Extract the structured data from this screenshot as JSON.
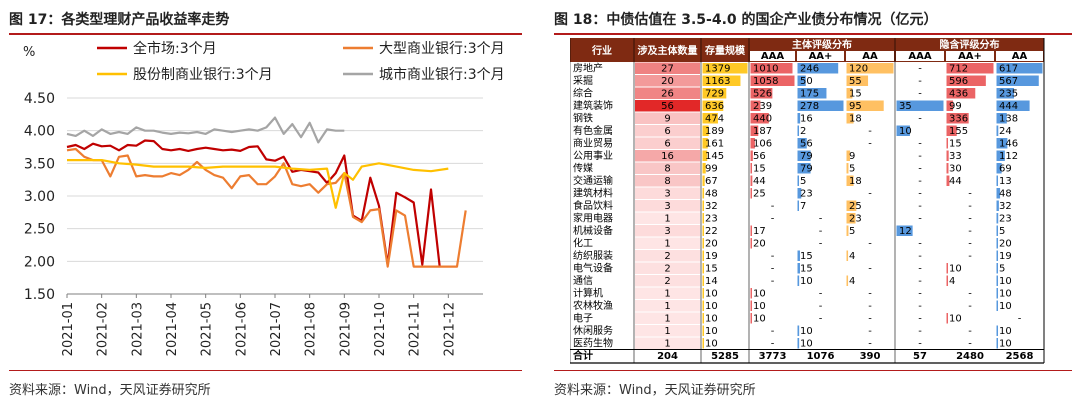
{
  "left": {
    "title": "图 17：各类型理财产品收益率走势",
    "source": "资料来源：Wind，天风证券研究所"
  },
  "right": {
    "title": "图 18：中债估值在 3.5-4.0 的国企产业债分布情况（亿元）",
    "source": "资料来源：Wind，天风证券研究所"
  },
  "chart_data": [
    {
      "type": "line",
      "title": "各类型理财产品收益率走势",
      "ylabel": "%",
      "ylim": [
        1.5,
        4.5
      ],
      "yticks": [
        "1.50",
        "2.00",
        "2.50",
        "3.00",
        "3.50",
        "4.00",
        "4.50"
      ],
      "xticks": [
        "2021-01",
        "2021-02",
        "2021-03",
        "2021-04",
        "2021-05",
        "2021-06",
        "2021-07",
        "2021-08",
        "2021-09",
        "2021-10",
        "2021-11",
        "2021-12"
      ],
      "grid": true,
      "legend_position": "top",
      "series": [
        {
          "name": "全市场:3个月",
          "color": "#c00000",
          "x": [
            0,
            0.25,
            0.5,
            0.75,
            1,
            1.25,
            1.5,
            1.75,
            2,
            2.25,
            2.5,
            2.75,
            3,
            3.25,
            3.5,
            3.75,
            4,
            4.25,
            4.5,
            4.75,
            5,
            5.25,
            5.5,
            5.75,
            6,
            6.25,
            6.5,
            6.75,
            7,
            7.25,
            7.5,
            7.75,
            8,
            8.25,
            8.5,
            8.75,
            9,
            9.25,
            9.5,
            9.75,
            10,
            10.25,
            10.5,
            10.75,
            11,
            11.25,
            11.5
          ],
          "y": [
            3.75,
            3.78,
            3.72,
            3.8,
            3.76,
            3.77,
            3.7,
            3.78,
            3.77,
            3.85,
            3.84,
            3.72,
            3.7,
            3.72,
            3.69,
            3.72,
            3.74,
            3.72,
            3.7,
            3.71,
            3.69,
            3.75,
            3.76,
            3.56,
            3.54,
            3.6,
            3.37,
            3.4,
            3.38,
            3.36,
            3.2,
            3.35,
            3.62,
            2.7,
            2.62,
            3.28,
            2.85,
            1.95,
            3.05,
            2.98,
            2.9,
            1.95,
            3.1,
            1.92,
            null,
            null,
            null
          ]
        },
        {
          "name": "大型商业银行:3个月",
          "color": "#ed7d31",
          "x": [
            0,
            0.25,
            0.5,
            0.75,
            1,
            1.25,
            1.5,
            1.75,
            2,
            2.25,
            2.5,
            2.75,
            3,
            3.25,
            3.5,
            3.75,
            4,
            4.25,
            4.5,
            4.75,
            5,
            5.25,
            5.5,
            5.75,
            6,
            6.25,
            6.5,
            6.75,
            7,
            7.25,
            7.5,
            7.75,
            8,
            8.25,
            8.5,
            8.75,
            9,
            9.25,
            9.5,
            9.75,
            10,
            10.25,
            10.5,
            10.75,
            11,
            11.25,
            11.5
          ],
          "y": [
            3.7,
            3.72,
            3.6,
            3.55,
            3.55,
            3.3,
            3.6,
            3.62,
            3.3,
            3.32,
            3.3,
            3.3,
            3.35,
            3.32,
            3.4,
            3.52,
            3.4,
            3.32,
            3.28,
            3.12,
            3.3,
            3.32,
            3.18,
            3.18,
            3.3,
            3.5,
            3.18,
            3.15,
            3.18,
            3.05,
            3.18,
            3.2,
            3.35,
            2.68,
            2.6,
            2.78,
            2.8,
            1.92,
            2.78,
            2.7,
            1.92,
            1.92,
            1.92,
            1.92,
            1.92,
            1.92,
            2.78
          ]
        },
        {
          "name": "股份制商业银行:3个月",
          "color": "#ffc000",
          "x": [
            0,
            0.5,
            1,
            1.5,
            2,
            2.5,
            3,
            3.5,
            4,
            4.5,
            5,
            5.5,
            6,
            6.5,
            7,
            7.5,
            7.75,
            8,
            8.25,
            8.5,
            9,
            9.5,
            10,
            10.5,
            11
          ],
          "y": [
            3.55,
            3.55,
            3.55,
            3.5,
            3.48,
            3.45,
            3.45,
            3.45,
            3.43,
            3.45,
            3.45,
            3.45,
            3.45,
            3.42,
            3.4,
            3.42,
            2.82,
            3.35,
            3.25,
            3.45,
            3.5,
            3.45,
            3.4,
            3.38,
            3.42
          ]
        },
        {
          "name": "城市商业银行:3个月",
          "color": "#a5a5a5",
          "x": [
            0,
            0.25,
            0.5,
            0.75,
            1,
            1.25,
            1.5,
            1.75,
            2,
            2.25,
            2.5,
            2.75,
            3,
            3.25,
            3.5,
            3.75,
            4,
            4.25,
            4.5,
            4.75,
            5,
            5.25,
            5.5,
            5.75,
            6,
            6.25,
            6.5,
            6.75,
            7,
            7.25,
            7.5,
            7.75,
            8
          ],
          "y": [
            3.95,
            3.92,
            4.0,
            3.92,
            4.02,
            3.95,
            3.98,
            3.95,
            4.05,
            4.0,
            4.0,
            3.97,
            3.95,
            3.97,
            3.96,
            3.98,
            3.95,
            4.02,
            4.0,
            3.98,
            4.0,
            4.02,
            4.0,
            4.05,
            4.2,
            3.95,
            4.1,
            3.9,
            4.12,
            3.82,
            4.02,
            4.0,
            4.0
          ]
        }
      ]
    },
    {
      "type": "table",
      "title": "中债估值在 3.5-4.0 的国企产业债分布情况（亿元）",
      "group_headers": [
        "主体评级分布",
        "隐含评级分布"
      ],
      "columns": [
        "行业",
        "涉及主体数量",
        "存量规模",
        "AAA",
        "AA+",
        "AA",
        "AAA",
        "AA+",
        "AA"
      ],
      "rows": [
        [
          "房地产",
          "27",
          "1379",
          "1010",
          "246",
          "120",
          "-",
          "712",
          "617"
        ],
        [
          "采掘",
          "20",
          "1163",
          "1058",
          "50",
          "55",
          "-",
          "596",
          "567"
        ],
        [
          "综合",
          "26",
          "729",
          "526",
          "175",
          "15",
          "-",
          "436",
          "235"
        ],
        [
          "建筑装饰",
          "56",
          "636",
          "239",
          "278",
          "95",
          "35",
          "99",
          "444"
        ],
        [
          "钢铁",
          "9",
          "474",
          "440",
          "16",
          "18",
          "-",
          "336",
          "138"
        ],
        [
          "有色金属",
          "6",
          "189",
          "187",
          "2",
          "-",
          "10",
          "155",
          "24"
        ],
        [
          "商业贸易",
          "6",
          "161",
          "106",
          "56",
          "-",
          "-",
          "15",
          "146"
        ],
        [
          "公用事业",
          "16",
          "145",
          "56",
          "79",
          "9",
          "-",
          "33",
          "112"
        ],
        [
          "传媒",
          "8",
          "99",
          "15",
          "79",
          "5",
          "-",
          "30",
          "69"
        ],
        [
          "交通运输",
          "8",
          "67",
          "44",
          "5",
          "18",
          "-",
          "44",
          "13"
        ],
        [
          "建筑材料",
          "3",
          "48",
          "25",
          "23",
          "-",
          "-",
          "-",
          "48"
        ],
        [
          "食品饮料",
          "3",
          "32",
          "-",
          "7",
          "25",
          "-",
          "-",
          "32"
        ],
        [
          "家用电器",
          "1",
          "23",
          "-",
          "-",
          "23",
          "-",
          "-",
          "23"
        ],
        [
          "机械设备",
          "3",
          "22",
          "17",
          "-",
          "5",
          "12",
          "-",
          "5"
        ],
        [
          "化工",
          "1",
          "20",
          "20",
          "-",
          "-",
          "-",
          "-",
          "20"
        ],
        [
          "纺织服装",
          "2",
          "19",
          "-",
          "15",
          "4",
          "-",
          "-",
          "19"
        ],
        [
          "电气设备",
          "2",
          "15",
          "-",
          "15",
          "-",
          "-",
          "10",
          "5"
        ],
        [
          "通信",
          "2",
          "14",
          "-",
          "10",
          "4",
          "-",
          "4",
          "10"
        ],
        [
          "计算机",
          "1",
          "10",
          "10",
          "-",
          "-",
          "-",
          "-",
          "10"
        ],
        [
          "农林牧渔",
          "1",
          "10",
          "10",
          "-",
          "-",
          "-",
          "-",
          "10"
        ],
        [
          "电子",
          "1",
          "10",
          "10",
          "-",
          "-",
          "-",
          "10",
          "-"
        ],
        [
          "休闲服务",
          "1",
          "10",
          "-",
          "10",
          "-",
          "-",
          "-",
          "10"
        ],
        [
          "医药生物",
          "1",
          "10",
          "-",
          "10",
          "-",
          "-",
          "-",
          "10"
        ]
      ],
      "total": [
        "合计",
        "204",
        "5285",
        "3773",
        "1076",
        "390",
        "57",
        "2480",
        "2568"
      ]
    }
  ]
}
